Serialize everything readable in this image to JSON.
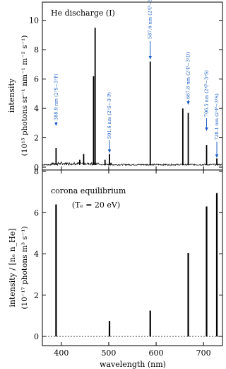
{
  "chart_data": [
    {
      "type": "line",
      "title": "He discharge (I)",
      "xlabel": "",
      "ylabel": "intensity",
      "ylabel_units": "(10¹⁵ photons sr⁻¹ nm⁻¹ m⁻² s⁻¹)",
      "xlim": [
        360,
        740
      ],
      "ylim": [
        0,
        11
      ],
      "xticks": [
        400,
        500,
        600,
        700
      ],
      "yticks": [
        0,
        2,
        4,
        6,
        8,
        10
      ],
      "lines": [
        {
          "wavelength": 388.9,
          "value": 1.3
        },
        {
          "wavelength": 438.8,
          "value": 0.5
        },
        {
          "wavelength": 447.1,
          "value": 0.9
        },
        {
          "wavelength": 468.0,
          "value": 6.2
        },
        {
          "wavelength": 471.3,
          "value": 9.5
        },
        {
          "wavelength": 492.2,
          "value": 0.5
        },
        {
          "wavelength": 501.6,
          "value": 0.9
        },
        {
          "wavelength": 504.8,
          "value": 0.3
        },
        {
          "wavelength": 587.6,
          "value": 7.2
        },
        {
          "wavelength": 656.3,
          "value": 4.0
        },
        {
          "wavelength": 667.8,
          "value": 3.7
        },
        {
          "wavelength": 706.5,
          "value": 1.5
        },
        {
          "wavelength": 728.1,
          "value": 0.6
        }
      ],
      "annotations": [
        {
          "text": "388.9 nm (2³S−3³P)",
          "wavelength": 388.9
        },
        {
          "text": "501.6 nm (2¹S−3¹P)",
          "wavelength": 501.6
        },
        {
          "text": "587.6 nm (2³P−3³D)",
          "wavelength": 587.6
        },
        {
          "text": "667.8 nm (2¹P−3¹D)",
          "wavelength": 667.8
        },
        {
          "text": "706.5 nm (2³P−3³S)",
          "wavelength": 706.5
        },
        {
          "text": "728.1 nm (2¹P−3¹S)",
          "wavelength": 728.1
        }
      ]
    },
    {
      "type": "bar",
      "title": "corona equilibrium",
      "subtitle": "(Tₑ = 20 eV)",
      "xlabel": "wavelength (nm)",
      "ylabel": "intensity / [nₑ n_He]",
      "ylabel_units": "(10⁻¹⁷ photons m³ s⁻¹)",
      "xlim": [
        360,
        740
      ],
      "ylim": [
        0,
        8
      ],
      "xticks": [
        400,
        500,
        600,
        700
      ],
      "yticks": [
        0,
        2,
        4,
        6,
        8
      ],
      "x": [
        388.9,
        501.6,
        587.6,
        667.8,
        706.5,
        728.1
      ],
      "values": [
        6.4,
        0.75,
        1.25,
        4.05,
        6.3,
        6.95
      ]
    }
  ]
}
